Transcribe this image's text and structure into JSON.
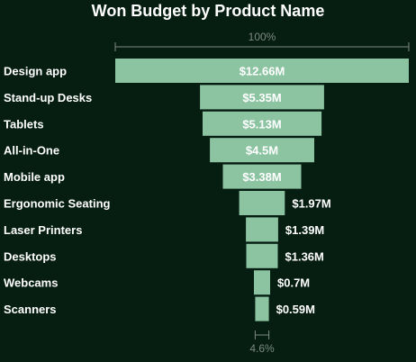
{
  "chart_data": {
    "type": "funnel",
    "title": "Won Budget by Product Name",
    "categories": [
      "Design app",
      "Stand-up Desks",
      "Tablets",
      "All-in-One",
      "Mobile app",
      "Ergonomic Seating",
      "Laser Printers",
      "Desktops",
      "Webcams",
      "Scanners"
    ],
    "values": [
      12.66,
      5.35,
      5.13,
      4.5,
      3.38,
      1.97,
      1.39,
      1.36,
      0.7,
      0.59
    ],
    "value_labels": [
      "$12.66M",
      "$5.35M",
      "$5.13M",
      "$4.5M",
      "$3.38M",
      "$1.97M",
      "$1.39M",
      "$1.36M",
      "$0.7M",
      "$0.59M"
    ],
    "top_percent_label": "100%",
    "bottom_percent_label": "4.6%",
    "colors": {
      "background": "#061e12",
      "bar": "#8cc4a2",
      "text": "#ffffff",
      "muted": "#7d8a82"
    }
  }
}
